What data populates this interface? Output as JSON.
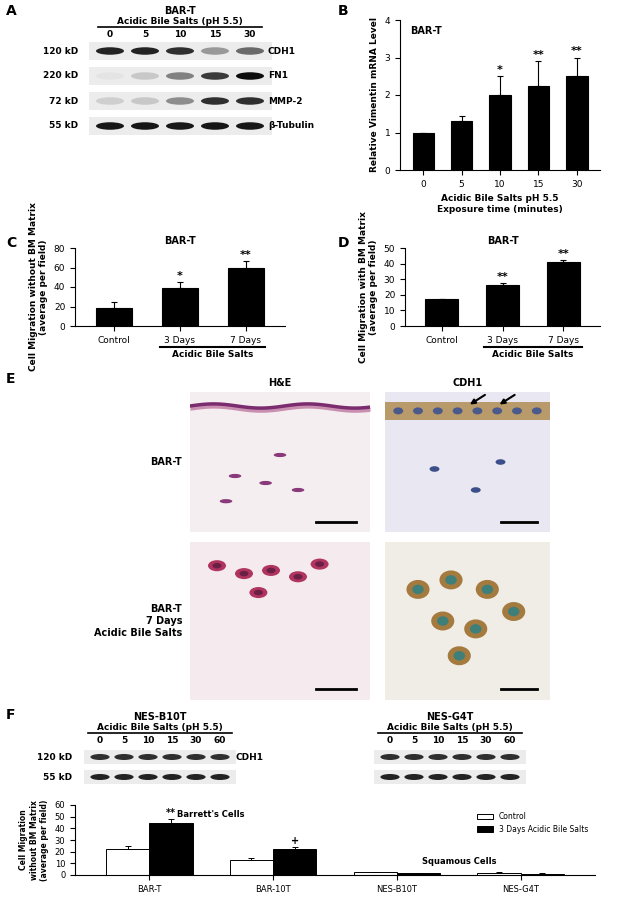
{
  "blots": [
    {
      "panel": "A",
      "title": "BAR-T",
      "treatment": "Acidic Bile Salts (pH 5.5)",
      "lanes": [
        "0",
        "5",
        "10",
        "15",
        "30"
      ],
      "rows": [
        {
          "size": "120 kD",
          "protein": "CDH1",
          "band_intensity": [
            0.85,
            0.85,
            0.8,
            0.35,
            0.55
          ]
        },
        {
          "size": "220 kD",
          "protein": "FN1",
          "band_intensity": [
            0.03,
            0.15,
            0.45,
            0.75,
            0.95
          ]
        },
        {
          "size": "72 kD",
          "protein": "MMP-2",
          "band_intensity": [
            0.12,
            0.15,
            0.4,
            0.8,
            0.8
          ]
        },
        {
          "size": "55 kD",
          "protein": "β-Tubulin",
          "band_intensity": [
            0.9,
            0.9,
            0.9,
            0.9,
            0.9
          ]
        }
      ]
    },
    {
      "panel": "F",
      "title": "NES-B10T",
      "treatment": "Acidic Bile Salts (pH 5.5)",
      "lanes": [
        "0",
        "5",
        "10",
        "15",
        "30",
        "60"
      ],
      "rows": [
        {
          "size": "120 kD",
          "protein": "CDH1",
          "band_intensity": [
            0.8,
            0.8,
            0.8,
            0.8,
            0.8,
            0.8
          ]
        },
        {
          "size": "55 kD",
          "protein": null,
          "band_intensity": [
            0.85,
            0.85,
            0.85,
            0.85,
            0.85,
            0.85
          ]
        }
      ]
    },
    {
      "panel": null,
      "title": "NES-G4T",
      "treatment": "Acidic Bile Salts (pH 5.5)",
      "lanes": [
        "0",
        "5",
        "10",
        "15",
        "30",
        "60"
      ],
      "rows": [
        {
          "size": null,
          "protein": null,
          "band_intensity": [
            0.8,
            0.8,
            0.8,
            0.8,
            0.8,
            0.8
          ]
        },
        {
          "size": null,
          "protein": null,
          "band_intensity": [
            0.85,
            0.85,
            0.85,
            0.85,
            0.85,
            0.85
          ]
        }
      ]
    }
  ],
  "micrographs": {
    "panel": "E",
    "columns": [
      "H&E",
      "CDH1"
    ],
    "rows": [
      "BAR-T",
      "BAR-T\n7 Days\nAcidic Bile Salts"
    ]
  },
  "chart_data": [
    {
      "panel": "B",
      "type": "bar",
      "title": "BAR-T",
      "categories": [
        "0",
        "5",
        "10",
        "15",
        "30"
      ],
      "values": [
        1.0,
        1.3,
        2.0,
        2.25,
        2.5
      ],
      "errors": [
        0,
        0.15,
        0.5,
        0.65,
        0.5
      ],
      "significance": [
        null,
        null,
        "*",
        "**",
        "**"
      ],
      "color": "#000000",
      "y_label": "Relative Vimentin mRNA Level",
      "x_label": "Acidic Bile Salts pH 5.5\nExposure time (minutes)",
      "ylim": [
        0,
        4
      ],
      "yticks": [
        0,
        1,
        2,
        3,
        4
      ]
    },
    {
      "panel": "C",
      "type": "bar",
      "title": "BAR-T",
      "categories": [
        "Control",
        "3 Days",
        "7 Days"
      ],
      "values": [
        18,
        39,
        60
      ],
      "errors": [
        7,
        6,
        7
      ],
      "significance": [
        null,
        "*",
        "**"
      ],
      "color": "#000000",
      "y_label": "Cell Migration without BM Matrix\n(average per field)",
      "group": {
        "label": "Acidic Bile Salts",
        "categories": [
          "3 Days",
          "7 Days"
        ]
      },
      "ylim": [
        0,
        80
      ],
      "yticks": [
        0,
        20,
        40,
        60,
        80
      ]
    },
    {
      "panel": "D",
      "type": "bar",
      "title": "BAR-T",
      "categories": [
        "Control",
        "3 Days",
        "7 Days"
      ],
      "values": [
        17,
        26,
        41
      ],
      "errors": [
        0.5,
        1.5,
        1.5
      ],
      "significance": [
        null,
        "**",
        "**"
      ],
      "color": "#000000",
      "y_label": "Cell Migration with BM Matrix\n(average per field)",
      "group": {
        "label": "Acidic Bile Salts",
        "categories": [
          "3 Days",
          "7 Days"
        ]
      },
      "ylim": [
        0,
        50
      ],
      "yticks": [
        0,
        10,
        20,
        30,
        40,
        50
      ]
    },
    {
      "panel": null,
      "type": "bar",
      "categories": [
        "BAR-T",
        "BAR-10T",
        "NES-B10T",
        "NES-G4T"
      ],
      "series": [
        {
          "name": "Control",
          "color": "#ffffff",
          "values": [
            22,
            13,
            2.5,
            2
          ],
          "errors": [
            3,
            1.5,
            0.3,
            0.3
          ]
        },
        {
          "name": "3 Days Acidic Bile Salts",
          "color": "#000000",
          "values": [
            45,
            22.5,
            1.5,
            1
          ],
          "errors": [
            3,
            1.5,
            0.3,
            0.3
          ],
          "significance": [
            "**",
            "+",
            null,
            null
          ]
        }
      ],
      "groups": [
        {
          "label": "Barrett's Cells",
          "categories": [
            "BAR-T",
            "BAR-10T"
          ]
        },
        {
          "label": "Squamous Cells",
          "categories": [
            "NES-B10T",
            "NES-G4T"
          ]
        }
      ],
      "y_label": "Cell Migration\nwithout BM Matrix\n(average per field)",
      "ylim": [
        0,
        60
      ],
      "yticks": [
        0,
        10,
        20,
        30,
        40,
        50,
        60
      ],
      "legend": "upper right"
    }
  ]
}
